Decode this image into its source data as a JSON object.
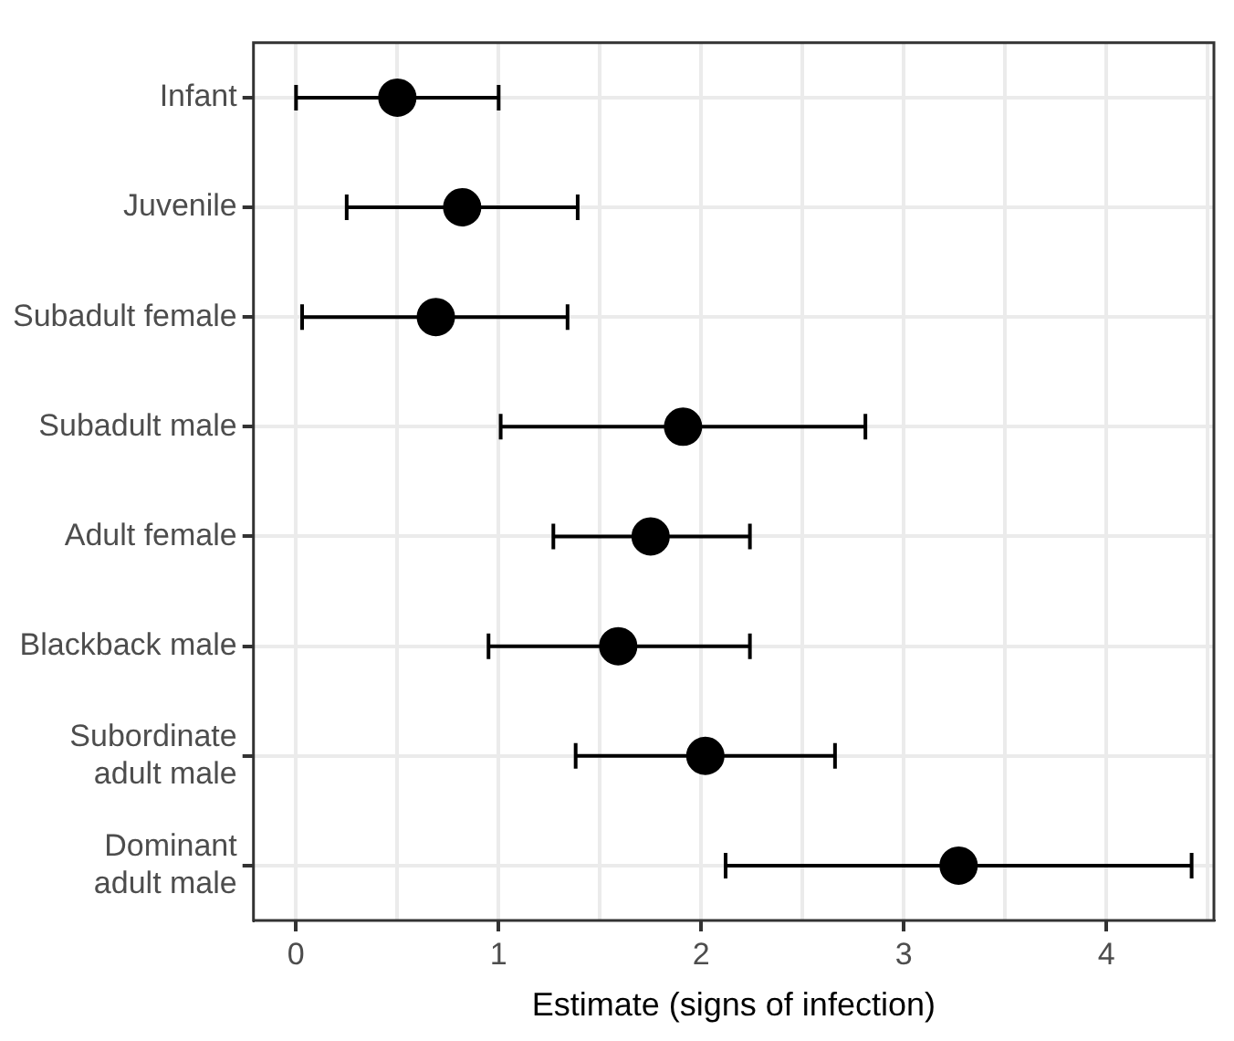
{
  "chart_data": {
    "type": "scatter",
    "orientation": "horizontal",
    "xlabel": "Estimate (signs of infection)",
    "categories": [
      "Infant",
      "Juvenile",
      "Subadult female",
      "Subadult male",
      "Adult female",
      "Blackback male",
      "Subordinate\nadult male",
      "Dominant\nadult male"
    ],
    "values": [
      0.5,
      0.82,
      0.69,
      1.91,
      1.75,
      1.59,
      2.02,
      3.27
    ],
    "errors": [
      [
        0.0,
        1.0
      ],
      [
        0.25,
        1.39
      ],
      [
        0.03,
        1.34
      ],
      [
        1.01,
        2.81
      ],
      [
        1.27,
        2.24
      ],
      [
        0.95,
        2.24
      ],
      [
        1.38,
        2.66
      ],
      [
        2.12,
        4.42
      ]
    ],
    "color": "#000000",
    "marker": "circle",
    "xlim": [
      -0.21,
      4.53
    ],
    "xticks": [
      0,
      {
        "value": 0.5,
        "label": null
      },
      1,
      {
        "value": 1.5,
        "label": null
      },
      2,
      {
        "value": 2.5,
        "label": null
      },
      3,
      {
        "value": 3.5,
        "label": null
      },
      4,
      {
        "value": 4.5,
        "label": null
      }
    ],
    "grid": true,
    "legend": false
  }
}
